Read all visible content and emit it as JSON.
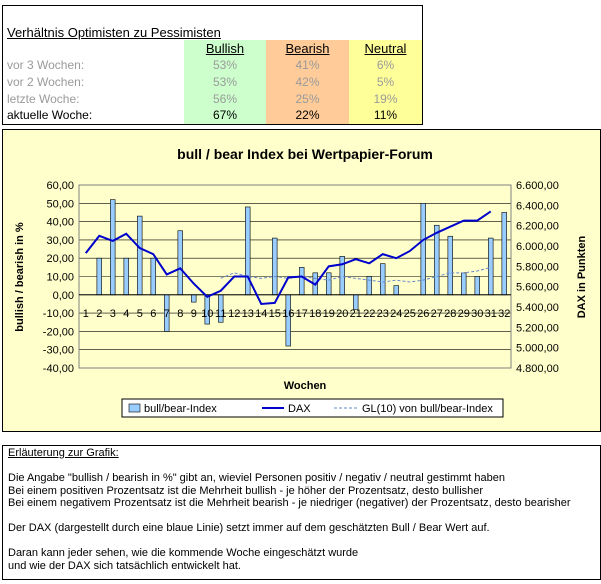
{
  "ratio_table": {
    "title": "Verhältnis Optimisten zu Pessimisten",
    "headers": [
      "Bullish",
      "Bearish",
      "Neutral"
    ],
    "rows": [
      {
        "label": "vor 3 Wochen:",
        "bullish": "53%",
        "bearish": "41%",
        "neutral": "6%"
      },
      {
        "label": "vor 2 Wochen:",
        "bullish": "53%",
        "bearish": "42%",
        "neutral": "5%"
      },
      {
        "label": "letzte Woche:",
        "bullish": "56%",
        "bearish": "25%",
        "neutral": "19%"
      },
      {
        "label": "aktuelle Woche:",
        "bullish": "67%",
        "bearish": "22%",
        "neutral": "11%"
      }
    ],
    "colors": {
      "bullish": "#ccffcc",
      "bearish": "#ffcc99",
      "neutral": "#ffff99"
    }
  },
  "chart_data": {
    "type": "bar",
    "title": "bull / bear Index bei Wertpapier-Forum",
    "xlabel": "Wochen",
    "ylabel": "bullish / bearish in %",
    "y2label": "DAX in Punkten",
    "categories": [
      "1",
      "2",
      "3",
      "4",
      "5",
      "6",
      "7",
      "8",
      "9",
      "10",
      "11",
      "12",
      "13",
      "14",
      "15",
      "16",
      "17",
      "18",
      "19",
      "20",
      "21",
      "22",
      "23",
      "24",
      "25",
      "26",
      "27",
      "28",
      "29",
      "30",
      "31",
      "32"
    ],
    "ylim": [
      -40,
      60
    ],
    "y_ticks": [
      "60,00",
      "50,00",
      "40,00",
      "30,00",
      "20,00",
      "10,00",
      "0,00",
      "-10,00",
      "-20,00",
      "-30,00",
      "-40,00"
    ],
    "y2lim": [
      4800,
      6600
    ],
    "y2_ticks": [
      "6.600,00",
      "6.400,00",
      "6.200,00",
      "6.000,00",
      "5.800,00",
      "5.600,00",
      "5.400,00",
      "5.200,00",
      "5.000,00",
      "4.800,00"
    ],
    "series": [
      {
        "name": "bull/bear-Index",
        "kind": "bar",
        "axis": "left",
        "color": "#99ccff",
        "values": [
          0,
          20,
          52,
          20,
          43,
          20,
          -20,
          35,
          -4,
          -16,
          -15,
          0,
          48,
          0,
          31,
          -28,
          15,
          12,
          12,
          21,
          -8,
          10,
          17,
          5,
          0,
          50,
          38,
          32,
          12,
          10,
          31,
          45
        ]
      },
      {
        "name": "DAX",
        "kind": "line",
        "axis": "right",
        "color": "#0000cc",
        "values": [
          5930,
          6100,
          6050,
          6120,
          5980,
          5920,
          5720,
          5780,
          5630,
          5500,
          5560,
          5700,
          5700,
          5430,
          5440,
          5690,
          5700,
          5620,
          5800,
          5820,
          5870,
          5830,
          5920,
          5880,
          5950,
          6060,
          6130,
          6190,
          6250,
          6250,
          6340,
          null
        ]
      },
      {
        "name": "GL(10) von bull/bear-Index",
        "kind": "line-dashed",
        "axis": "left",
        "color": "#6688cc",
        "values": [
          null,
          null,
          null,
          null,
          null,
          null,
          null,
          null,
          null,
          null,
          9,
          12,
          10,
          9,
          10,
          9,
          10,
          9,
          8,
          10,
          9,
          8,
          7,
          8,
          7,
          8,
          10,
          12,
          12,
          13,
          15,
          null
        ]
      }
    ],
    "legend": [
      "bull/bear-Index",
      "DAX",
      "GL(10) von bull/bear-Index"
    ],
    "legend_position": "bottom",
    "grid": true
  },
  "explanation": {
    "title": "Erläuterung zur Grafik:",
    "lines": [
      "Die Angabe \"bullish / bearish in %\" gibt an, wieviel Personen positiv / negativ / neutral gestimmt haben",
      "Bei einem positiven Prozentsatz ist die Mehrheit bullish - je höher der Prozentsatz, desto bullisher",
      "Bei einem negativem Prozentsatz ist die Mehrheit bearish - je niedriger (negativer) der Prozentsatz, desto bearisher",
      "Der DAX (dargestellt durch eine blaue Linie) setzt immer auf dem geschätzten Bull / Bear Wert auf.",
      "Daran kann jeder sehen, wie die kommende Woche eingeschätzt wurde",
      "und wie der DAX sich tatsächlich entwickelt hat."
    ]
  }
}
